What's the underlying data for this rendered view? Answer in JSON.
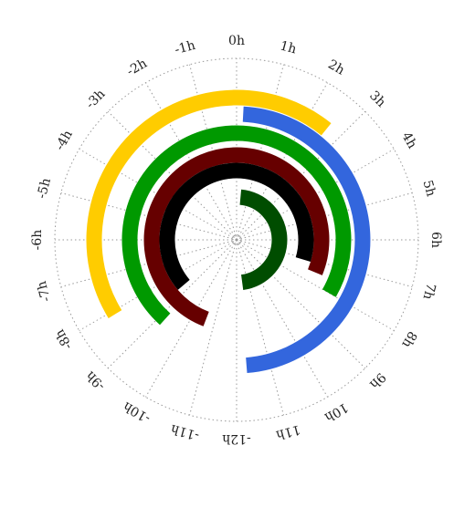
{
  "chart_data": {
    "type": "radial-arc",
    "title": "",
    "grid": true,
    "legend": "none",
    "angular_axis": {
      "tick_labels": [
        "0h",
        "1h",
        "2h",
        "3h",
        "4h",
        "5h",
        "6h",
        "7h",
        "8h",
        "9h",
        "10h",
        "11h",
        "-12h",
        "-11h",
        "-10h",
        "-9h",
        "-8h",
        "-7h",
        "-6h",
        "-5h",
        "-4h",
        "-3h",
        "-2h",
        "-1h"
      ],
      "tick_values": [
        0,
        1,
        2,
        3,
        4,
        5,
        6,
        7,
        8,
        9,
        10,
        11,
        12,
        -11,
        -10,
        -9,
        -8,
        -7,
        -6,
        -5,
        -4,
        -3,
        -2,
        -1
      ],
      "range": [
        -12,
        12
      ],
      "direction": "clockwise",
      "zero_at": "top"
    },
    "series": [
      {
        "color": "#ffcc00",
        "start": -8.1,
        "end": 2.6
      },
      {
        "color": "#3366dd",
        "start": 0.2,
        "end": 11.7
      },
      {
        "color": "#009900",
        "start": -9.2,
        "end": 8.0
      },
      {
        "color": "#660000",
        "start": -10.6,
        "end": 7.5
      },
      {
        "color": "#000000",
        "start": -8.7,
        "end": 7.1
      },
      {
        "color": "#004d00",
        "start": 0.35,
        "end": 11.5
      }
    ]
  }
}
